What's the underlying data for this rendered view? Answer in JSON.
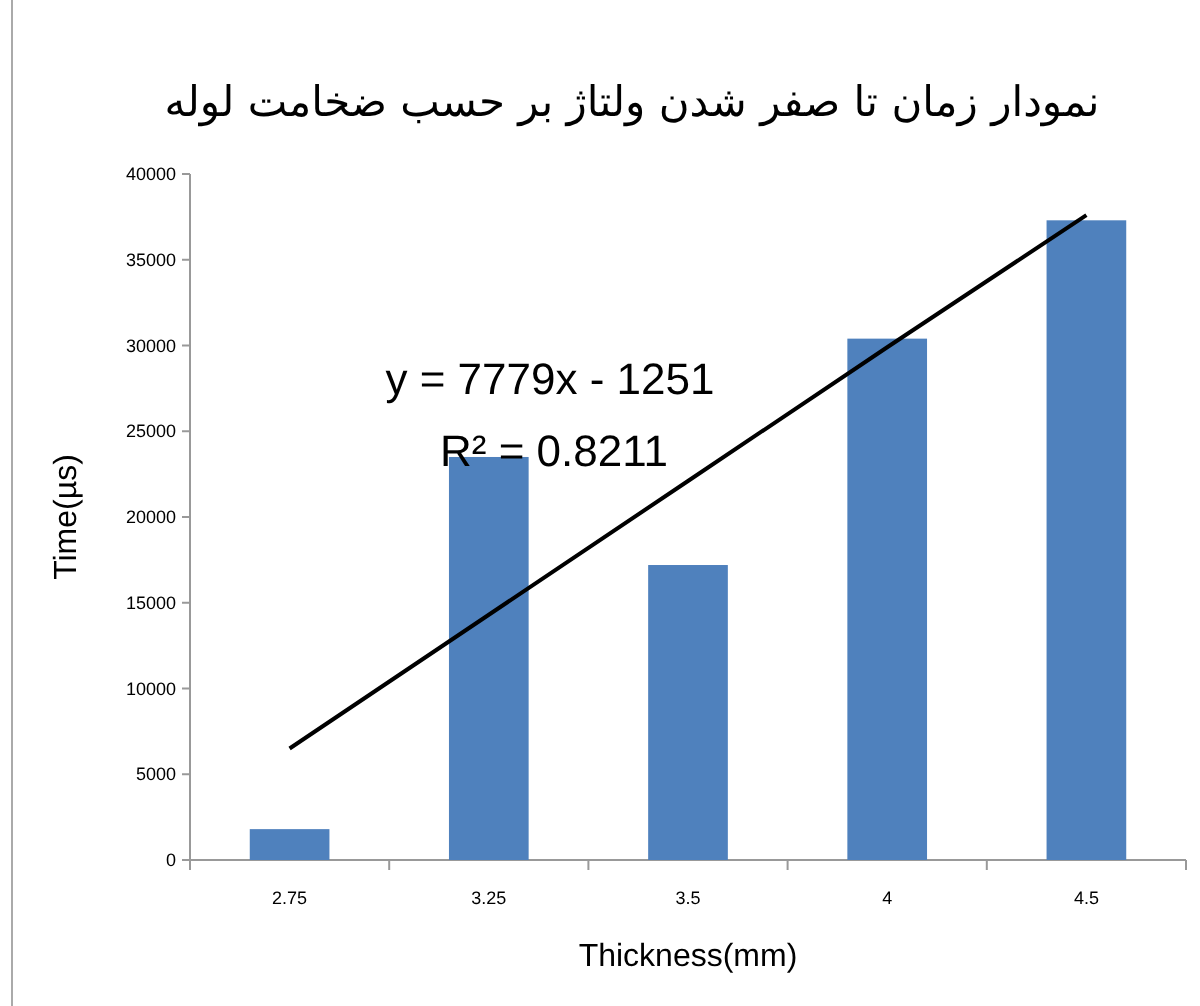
{
  "chart_data": {
    "type": "bar",
    "title": "نمودار زمان تا صفر شدن ولتاژ بر حسب ضخامت لوله",
    "xlabel": "Thickness(mm)",
    "ylabel": "Time(µs)",
    "categories": [
      "2.75",
      "3.25",
      "3.5",
      "4",
      "4.5"
    ],
    "series": [
      {
        "color": "#4f81bd",
        "values": [
          1800,
          23500,
          17200,
          30400,
          37300
        ]
      },
      {
        "type": "line",
        "color": "#000000",
        "values": [
          6500,
          14300,
          22100,
          29900,
          37600
        ]
      }
    ],
    "annotations": [
      "y = 7779x - 1251",
      "R² = 0.8211"
    ],
    "ylim": [
      0,
      40000
    ],
    "yticks": [
      0,
      5000,
      10000,
      15000,
      20000,
      25000,
      30000,
      35000,
      40000
    ]
  }
}
